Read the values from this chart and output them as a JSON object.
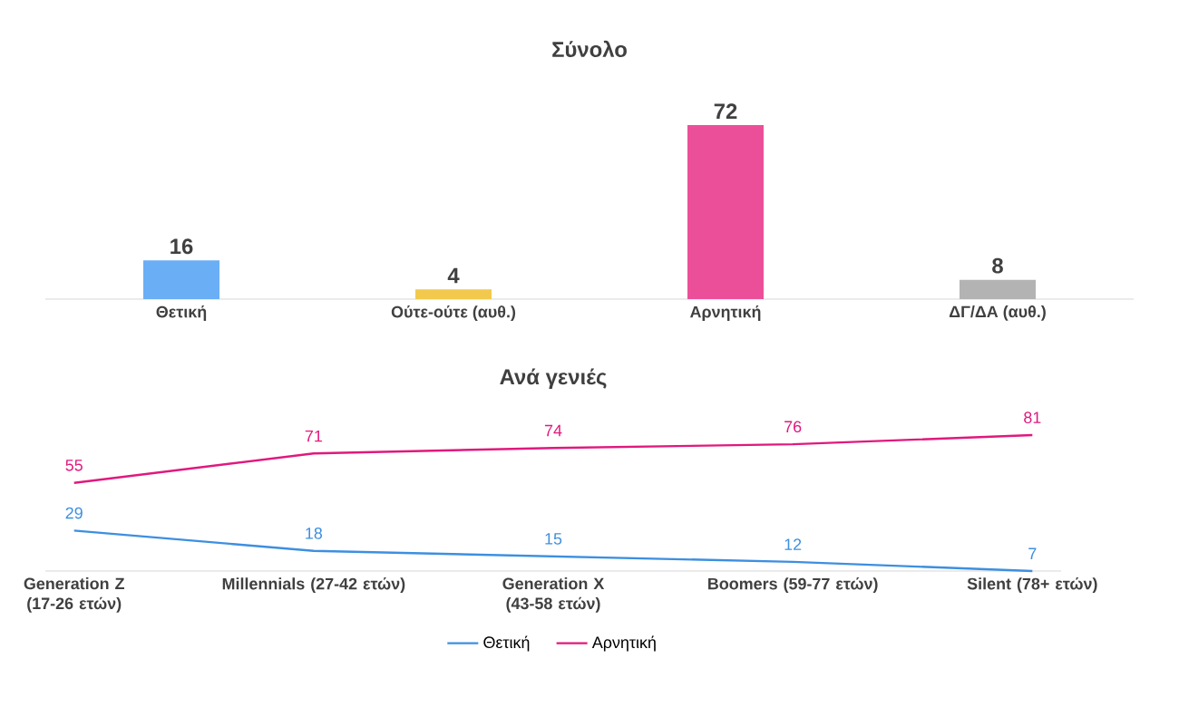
{
  "chart_data": [
    {
      "type": "bar",
      "title": "Σύνολο",
      "categories": [
        "Θετική",
        "Ούτε-ούτε (αυθ.)",
        "Αρνητική",
        "ΔΓ/ΔΑ (αυθ.)"
      ],
      "values": [
        16,
        4,
        72,
        8
      ],
      "colors": [
        "#6aaef5",
        "#f2c94c",
        "#ec4f9a",
        "#b3b3b3"
      ],
      "data_labels": true
    },
    {
      "type": "line",
      "title": "Ανά γενιές",
      "categories": [
        "Generation Z (17-26 ετών)",
        "Millennials (27-42 ετών)",
        "Generation X (43-58 ετών)",
        "Boomers (59-77 ετών)",
        "Silent (78+ ετών)"
      ],
      "series": [
        {
          "name": "Θετική",
          "color": "#3d8fe0",
          "values": [
            29,
            18,
            15,
            12,
            7
          ]
        },
        {
          "name": "Αρνητική",
          "color": "#e0197d",
          "values": [
            55,
            71,
            74,
            76,
            81
          ]
        }
      ],
      "data_labels": true,
      "legend": "bottom"
    }
  ]
}
